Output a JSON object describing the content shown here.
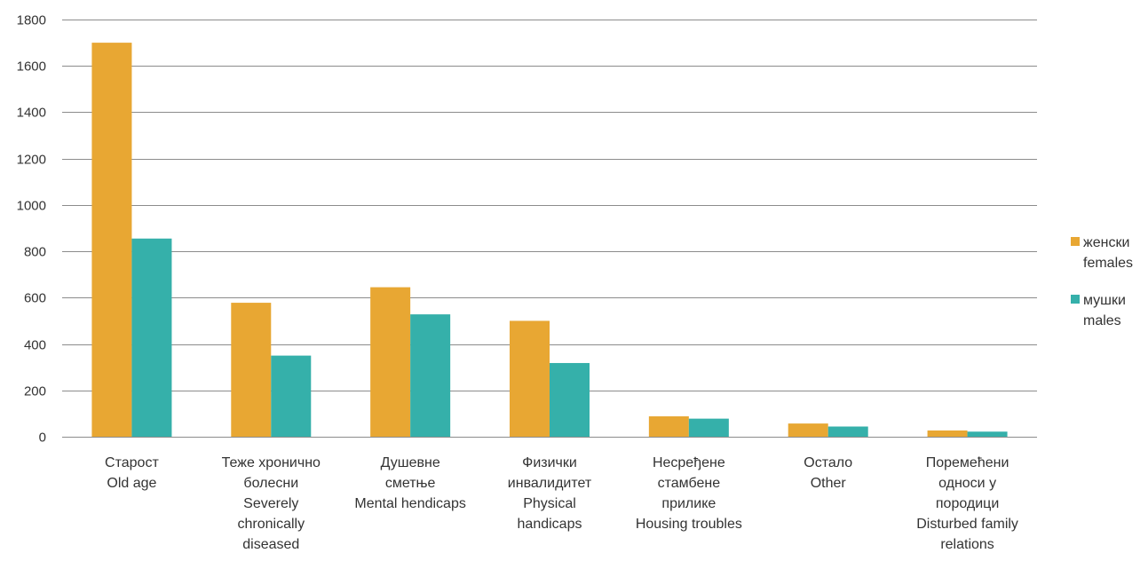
{
  "chart_data": {
    "type": "bar",
    "categories": [
      [
        "Старост",
        "Old age"
      ],
      [
        "Теже хронично",
        "болесни",
        "Severely",
        "chronically",
        "diseased"
      ],
      [
        "Душевне",
        "сметње",
        "Mental hendicaps"
      ],
      [
        "Физички",
        "инвалидитет",
        "Physical",
        "handicaps"
      ],
      [
        "Несређене",
        "стамбене",
        "прилике",
        "Housing troubles"
      ],
      [
        "Остало",
        "Other"
      ],
      [
        "Поремећени",
        "односи у",
        "породици",
        "Disturbed family",
        "relations"
      ]
    ],
    "series": [
      {
        "name": [
          "женски",
          "females"
        ],
        "color": "#E8A733",
        "values": [
          1700,
          578,
          645,
          500,
          88,
          57,
          27
        ]
      },
      {
        "name": [
          "мушки",
          "males"
        ],
        "color": "#35B0AA",
        "values": [
          855,
          350,
          528,
          318,
          78,
          44,
          22
        ]
      }
    ],
    "ylim": [
      0,
      1800
    ],
    "yticks": [
      0,
      200,
      400,
      600,
      800,
      1000,
      1200,
      1400,
      1600,
      1800
    ],
    "grid": true,
    "legend_position": "right"
  }
}
